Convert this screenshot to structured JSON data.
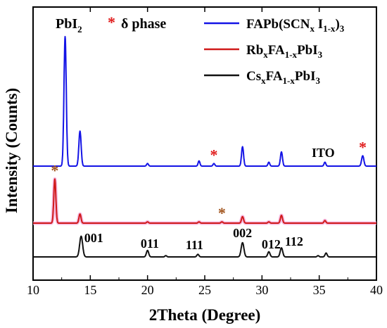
{
  "chart_data": {
    "type": "line",
    "xlabel": "2Theta (Degree)",
    "ylabel": "Intensity (Counts)",
    "xlim": [
      10,
      40
    ],
    "x_ticks": [
      "10",
      "15",
      "20",
      "25",
      "30",
      "35",
      "40"
    ],
    "y_ticks": [],
    "grid": false,
    "legend_position": "top-right",
    "top_labels": {
      "pbi2": "PbI",
      "pbi2_sub": "2",
      "delta_star": "*",
      "delta_text": "δ phase"
    },
    "ito_label": "ITO",
    "miller_labels": [
      {
        "text": "001",
        "x": 15.3
      },
      {
        "text": "011",
        "x": 20.2
      },
      {
        "text": "111",
        "x": 24.1
      },
      {
        "text": "002",
        "x": 28.3
      },
      {
        "text": "012",
        "x": 30.8
      },
      {
        "text": "112",
        "x": 32.8
      }
    ],
    "series": [
      {
        "name": "FAPb(SCN_x I_1-x)_3",
        "legend_parts": [
          [
            "FAPb(SCN",
            ""
          ],
          [
            "x",
            "sub"
          ],
          [
            " I",
            ""
          ],
          [
            "1-x",
            "sub"
          ],
          [
            ")",
            ""
          ],
          [
            "3",
            "sub"
          ]
        ],
        "color": "#1414e6",
        "baseline": 0.07,
        "peaks": [
          {
            "x": 12.8,
            "h": 1.0,
            "w": 0.1
          },
          {
            "x": 14.1,
            "h": 0.27,
            "w": 0.1
          },
          {
            "x": 20.0,
            "h": 0.02,
            "w": 0.08
          },
          {
            "x": 24.5,
            "h": 0.04,
            "w": 0.08
          },
          {
            "x": 25.8,
            "h": 0.02,
            "w": 0.08
          },
          {
            "x": 28.3,
            "h": 0.15,
            "w": 0.09
          },
          {
            "x": 30.6,
            "h": 0.03,
            "w": 0.08
          },
          {
            "x": 31.7,
            "h": 0.11,
            "w": 0.09
          },
          {
            "x": 35.5,
            "h": 0.03,
            "w": 0.08
          },
          {
            "x": 38.8,
            "h": 0.08,
            "w": 0.1
          }
        ],
        "stars": [
          25.8,
          38.8
        ]
      },
      {
        "name": "Rb_x FA_1-x PbI_3",
        "legend_parts": [
          [
            "Rb",
            ""
          ],
          [
            "x",
            "sub"
          ],
          [
            "FA",
            ""
          ],
          [
            "1-x",
            "sub"
          ],
          [
            "PbI",
            ""
          ],
          [
            "3",
            "sub"
          ]
        ],
        "color": "#d01a1a",
        "baseline": 0.035,
        "peaks": [
          {
            "x": 11.9,
            "h": 0.34,
            "w": 0.09
          },
          {
            "x": 14.1,
            "h": 0.07,
            "w": 0.09
          },
          {
            "x": 20.0,
            "h": 0.01,
            "w": 0.08
          },
          {
            "x": 24.5,
            "h": 0.01,
            "w": 0.08
          },
          {
            "x": 26.5,
            "h": 0.01,
            "w": 0.08
          },
          {
            "x": 28.3,
            "h": 0.05,
            "w": 0.09
          },
          {
            "x": 30.6,
            "h": 0.01,
            "w": 0.08
          },
          {
            "x": 31.7,
            "h": 0.06,
            "w": 0.09
          },
          {
            "x": 35.5,
            "h": 0.02,
            "w": 0.08
          }
        ],
        "stars": [
          11.9,
          26.5
        ]
      },
      {
        "name": "Cs_x FA_1-x PbI_3",
        "legend_parts": [
          [
            "Cs",
            ""
          ],
          [
            "x",
            "sub"
          ],
          [
            "FA",
            ""
          ],
          [
            "1-x",
            "sub"
          ],
          [
            "PbI",
            ""
          ],
          [
            "3",
            "sub"
          ]
        ],
        "color": "#111111",
        "baseline": 0.0,
        "peaks": [
          {
            "x": 14.2,
            "h": 0.16,
            "w": 0.13
          },
          {
            "x": 20.0,
            "h": 0.05,
            "w": 0.1
          },
          {
            "x": 21.6,
            "h": 0.01,
            "w": 0.08
          },
          {
            "x": 24.4,
            "h": 0.02,
            "w": 0.09
          },
          {
            "x": 28.3,
            "h": 0.11,
            "w": 0.12
          },
          {
            "x": 30.6,
            "h": 0.04,
            "w": 0.1
          },
          {
            "x": 31.7,
            "h": 0.07,
            "w": 0.11
          },
          {
            "x": 34.9,
            "h": 0.01,
            "w": 0.08
          },
          {
            "x": 35.6,
            "h": 0.03,
            "w": 0.09
          }
        ],
        "stars": []
      }
    ]
  }
}
